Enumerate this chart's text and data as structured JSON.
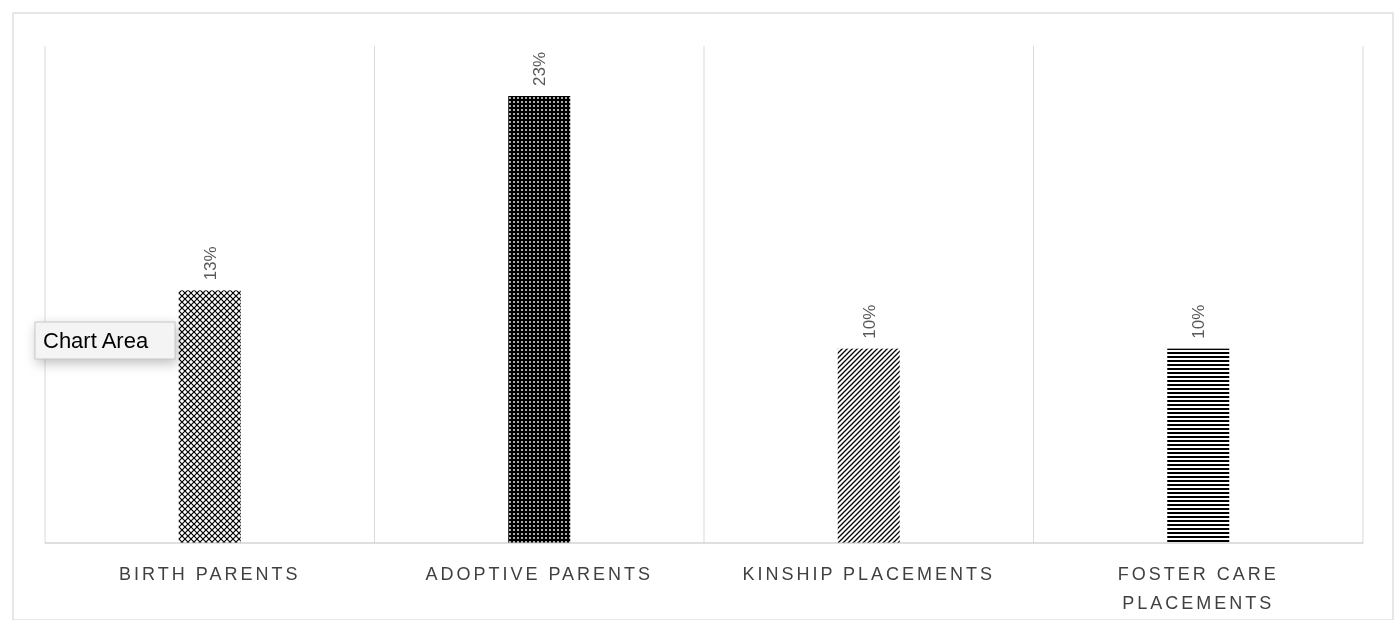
{
  "chart_data": {
    "type": "bar",
    "categories": [
      "BIRTH PARENTS",
      "ADOPTIVE PARENTS",
      "KINSHIP PLACEMENTS",
      "FOSTER CARE PLACEMENTS"
    ],
    "values": [
      13,
      23,
      10,
      10
    ],
    "colors": [
      "#000000",
      "#000000",
      "#000000",
      "#000000"
    ],
    "value_labels": [
      "13%",
      "23%",
      "10%",
      "10%"
    ],
    "grid": "x",
    "annotations": [
      "Chart Area"
    ]
  }
}
